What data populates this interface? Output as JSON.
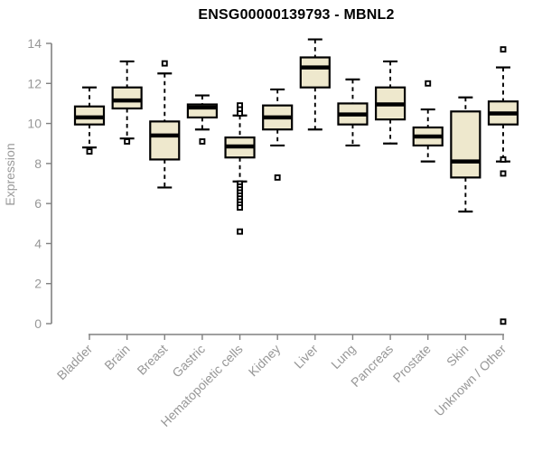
{
  "page": {
    "title": "ENSG00000139793 - MBNL2"
  },
  "colors": {
    "background": "#ffffff",
    "box_fill": "#EEE8CD",
    "box_border": "#000000",
    "median": "#000000",
    "whisker": "#000000",
    "axis": "#808080",
    "tick_label": "#979797",
    "title_text": "#000000"
  },
  "chart_data": {
    "type": "boxplot",
    "title": "ENSG00000139793 - MBNL2",
    "xlabel": "",
    "ylabel": "Expression",
    "ylim": [
      0,
      14
    ],
    "yticks": [
      0,
      2,
      4,
      6,
      8,
      10,
      12,
      14
    ],
    "grid": false,
    "legend_position": "none",
    "x_label_rotation_deg": 45,
    "categories": [
      "Bladder",
      "Brain",
      "Breast",
      "Gastric",
      "Hematopoietic cells",
      "Kidney",
      "Liver",
      "Lung",
      "Pancreas",
      "Prostate",
      "Skin",
      "Unknown / Other"
    ],
    "series": [
      {
        "category": "Bladder",
        "whisker_low": 8.8,
        "q1": 9.95,
        "median": 10.3,
        "q3": 10.85,
        "whisker_high": 11.8,
        "outliers": [
          8.6
        ]
      },
      {
        "category": "Brain",
        "whisker_low": 9.25,
        "q1": 10.75,
        "median": 11.15,
        "q3": 11.8,
        "whisker_high": 13.1,
        "outliers": [
          9.1
        ]
      },
      {
        "category": "Breast",
        "whisker_low": 6.8,
        "q1": 8.2,
        "median": 9.4,
        "q3": 10.1,
        "whisker_high": 12.5,
        "outliers": [
          13.0
        ]
      },
      {
        "category": "Gastric",
        "whisker_low": 9.7,
        "q1": 10.3,
        "median": 10.8,
        "q3": 10.95,
        "whisker_high": 11.4,
        "outliers": [
          9.1
        ]
      },
      {
        "category": "Hematopoietic cells",
        "whisker_low": 7.1,
        "q1": 8.3,
        "median": 8.85,
        "q3": 9.3,
        "whisker_high": 10.4,
        "outliers": [
          10.9,
          10.7,
          10.5,
          7.0,
          6.85,
          6.7,
          6.55,
          6.4,
          6.25,
          6.1,
          5.95,
          5.8,
          4.6
        ]
      },
      {
        "category": "Kidney",
        "whisker_low": 8.9,
        "q1": 9.7,
        "median": 10.3,
        "q3": 10.9,
        "whisker_high": 11.7,
        "outliers": [
          7.3
        ]
      },
      {
        "category": "Liver",
        "whisker_low": 9.7,
        "q1": 11.8,
        "median": 12.8,
        "q3": 13.3,
        "whisker_high": 14.2,
        "outliers": []
      },
      {
        "category": "Lung",
        "whisker_low": 8.9,
        "q1": 9.95,
        "median": 10.45,
        "q3": 11.0,
        "whisker_high": 12.2,
        "outliers": []
      },
      {
        "category": "Pancreas",
        "whisker_low": 9.0,
        "q1": 10.2,
        "median": 10.95,
        "q3": 11.8,
        "whisker_high": 13.1,
        "outliers": []
      },
      {
        "category": "Prostate",
        "whisker_low": 8.1,
        "q1": 8.9,
        "median": 9.35,
        "q3": 9.8,
        "whisker_high": 10.7,
        "outliers": [
          12.0
        ]
      },
      {
        "category": "Skin",
        "whisker_low": 5.6,
        "q1": 7.3,
        "median": 8.1,
        "q3": 10.6,
        "whisker_high": 11.3,
        "outliers": []
      },
      {
        "category": "Unknown / Other",
        "whisker_low": 8.1,
        "q1": 9.95,
        "median": 10.5,
        "q3": 11.1,
        "whisker_high": 12.8,
        "outliers": [
          13.7,
          8.2,
          7.5,
          0.1
        ]
      }
    ]
  }
}
